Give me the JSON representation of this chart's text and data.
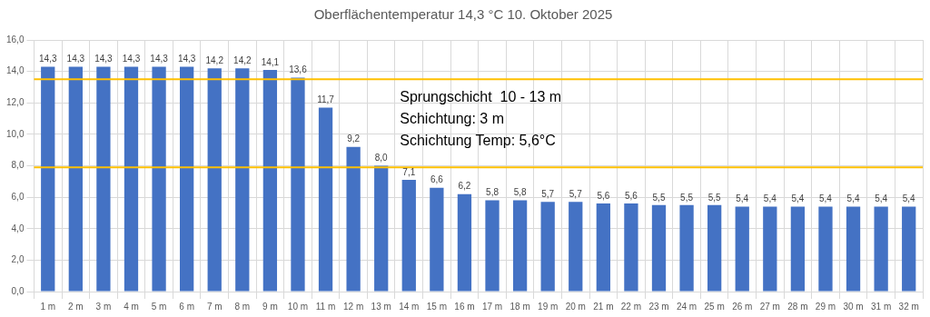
{
  "chart_data": {
    "type": "bar",
    "title": "Oberflächentemperatur 14,3 °C 10. Oktober 2025",
    "categories": [
      "1 m",
      "2 m",
      "3 m",
      "4 m",
      "5 m",
      "6 m",
      "7 m",
      "8 m",
      "9 m",
      "10 m",
      "11 m",
      "12 m",
      "13 m",
      "14 m",
      "15 m",
      "16 m",
      "17 m",
      "18 m",
      "19 m",
      "20 m",
      "21 m",
      "22 m",
      "23 m",
      "24 m",
      "25 m",
      "26 m",
      "27 m",
      "28 m",
      "29 m",
      "30 m",
      "31 m",
      "32 m"
    ],
    "values": [
      14.3,
      14.3,
      14.3,
      14.3,
      14.3,
      14.3,
      14.2,
      14.2,
      14.1,
      13.6,
      11.7,
      9.2,
      8.0,
      7.1,
      6.6,
      6.2,
      5.8,
      5.8,
      5.7,
      5.7,
      5.6,
      5.6,
      5.5,
      5.5,
      5.5,
      5.4,
      5.4,
      5.4,
      5.4,
      5.4,
      5.4,
      5.4
    ],
    "value_labels": [
      "14,3",
      "14,3",
      "14,3",
      "14,3",
      "14,3",
      "14,3",
      "14,2",
      "14,2",
      "14,1",
      "13,6",
      "11,7",
      "9,2",
      "8,0",
      "7,1",
      "6,6",
      "6,2",
      "5,8",
      "5,8",
      "5,7",
      "5,7",
      "5,6",
      "5,6",
      "5,5",
      "5,5",
      "5,5",
      "5,4",
      "5,4",
      "5,4",
      "5,4",
      "5,4",
      "5,4",
      "5,4"
    ],
    "color": "#4472c4",
    "ylim": [
      0,
      16
    ],
    "yticks": [
      {
        "value": 0,
        "label": "0,0"
      },
      {
        "value": 2,
        "label": "2,0"
      },
      {
        "value": 4,
        "label": "4,0"
      },
      {
        "value": 6,
        "label": "6,0"
      },
      {
        "value": 8,
        "label": "8,0"
      },
      {
        "value": 10,
        "label": "10,0"
      },
      {
        "value": 12,
        "label": "12,0"
      },
      {
        "value": 14,
        "label": "14,0"
      },
      {
        "value": 16,
        "label": "16,0"
      }
    ],
    "ref_lines": [
      {
        "axis": "y",
        "value": 13.5,
        "color": "#ffc000"
      },
      {
        "axis": "y",
        "value": 7.9,
        "color": "#ffc000"
      }
    ],
    "annotations": [
      "Sprungschicht  10 - 13 m",
      "Schichtung: 3 m",
      "Schichtung Temp: 5,6°C"
    ],
    "grid": true,
    "legend": false
  }
}
